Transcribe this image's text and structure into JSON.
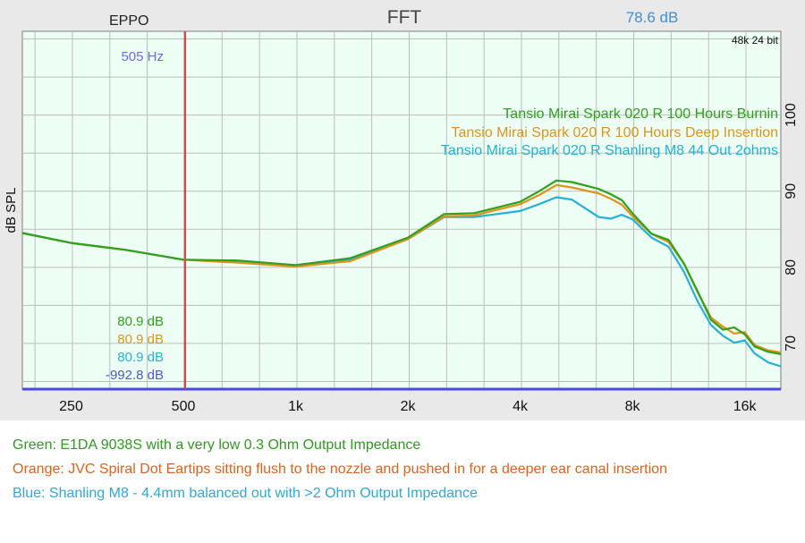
{
  "header": {
    "left": "EPPO",
    "title": "FFT",
    "right": "78.6 dB",
    "sample_info": "48k 24 bit"
  },
  "cursor": {
    "freq_label": "505 Hz",
    "freq": 505
  },
  "readouts": [
    {
      "text": "80.9 dB",
      "color": "#2ea21c"
    },
    {
      "text": "80.9 dB",
      "color": "#e0921c"
    },
    {
      "text": "80.9 dB",
      "color": "#27b0d6"
    },
    {
      "text": "-992.8 dB",
      "color": "#5555cc"
    }
  ],
  "chart_data": {
    "type": "line",
    "title": "FFT",
    "ylabel": "dB SPL",
    "xlabel": "",
    "x_scale": "log",
    "xlim": [
      185,
      20000
    ],
    "ylim": [
      64,
      111
    ],
    "x_ticks": [
      {
        "label": "250",
        "value": 250
      },
      {
        "label": "500",
        "value": 500
      },
      {
        "label": "1k",
        "value": 1000
      },
      {
        "label": "2k",
        "value": 2000
      },
      {
        "label": "4k",
        "value": 4000
      },
      {
        "label": "8k",
        "value": 8000
      },
      {
        "label": "16k",
        "value": 16000
      }
    ],
    "y_ticks": [
      {
        "label": "70",
        "value": 70
      },
      {
        "label": "80",
        "value": 80
      },
      {
        "label": "90",
        "value": 90
      },
      {
        "label": "100",
        "value": 100
      }
    ],
    "grid": true,
    "series": [
      {
        "name": "Tansio Mirai Spark 020 R 100 Hours Burnin",
        "color": "#2ea21c",
        "points": [
          [
            185,
            84.5
          ],
          [
            250,
            83.2
          ],
          [
            350,
            82.3
          ],
          [
            500,
            81
          ],
          [
            700,
            80.9
          ],
          [
            1000,
            80.3
          ],
          [
            1400,
            81.2
          ],
          [
            2000,
            83.9
          ],
          [
            2500,
            87
          ],
          [
            3000,
            87.1
          ],
          [
            4000,
            88.6
          ],
          [
            4500,
            90
          ],
          [
            5000,
            91.4
          ],
          [
            5500,
            91.2
          ],
          [
            6500,
            90.3
          ],
          [
            7000,
            89.6
          ],
          [
            7500,
            88.8
          ],
          [
            8000,
            87.1
          ],
          [
            9000,
            84.4
          ],
          [
            10000,
            83.6
          ],
          [
            11000,
            80.5
          ],
          [
            12000,
            76.7
          ],
          [
            13000,
            73.1
          ],
          [
            14000,
            71.8
          ],
          [
            15000,
            72.1
          ],
          [
            16000,
            71.2
          ],
          [
            17000,
            69.6
          ],
          [
            18500,
            68.9
          ],
          [
            20000,
            68.6
          ]
        ]
      },
      {
        "name": "Tansio Mirai Spark 020 R 100 Hours Deep Insertion",
        "color": "#e0921c",
        "points": [
          [
            185,
            84.5
          ],
          [
            250,
            83.2
          ],
          [
            350,
            82.3
          ],
          [
            500,
            81
          ],
          [
            700,
            80.6
          ],
          [
            1000,
            80.1
          ],
          [
            1400,
            80.8
          ],
          [
            2000,
            83.7
          ],
          [
            2500,
            86.7
          ],
          [
            3000,
            86.8
          ],
          [
            4000,
            88.3
          ],
          [
            4500,
            89.5
          ],
          [
            5000,
            90.8
          ],
          [
            5500,
            90.5
          ],
          [
            6500,
            89.7
          ],
          [
            7000,
            89
          ],
          [
            7500,
            88.2
          ],
          [
            8000,
            86.7
          ],
          [
            9000,
            84.4
          ],
          [
            10000,
            83.3
          ],
          [
            11000,
            80.5
          ],
          [
            12000,
            76.6
          ],
          [
            13000,
            73.4
          ],
          [
            14000,
            72.2
          ],
          [
            15000,
            71.3
          ],
          [
            16000,
            71.5
          ],
          [
            17000,
            69.8
          ],
          [
            18500,
            69.1
          ],
          [
            20000,
            68.8
          ]
        ]
      },
      {
        "name": "Tansio Mirai Spark 020 R Shanling M8 44 Out 2ohms",
        "color": "#27b0d6",
        "points": [
          [
            185,
            84.5
          ],
          [
            250,
            83.2
          ],
          [
            350,
            82.3
          ],
          [
            500,
            81
          ],
          [
            700,
            80.8
          ],
          [
            1000,
            80.2
          ],
          [
            1400,
            81
          ],
          [
            2000,
            83.7
          ],
          [
            2500,
            86.6
          ],
          [
            3000,
            86.6
          ],
          [
            4000,
            87.4
          ],
          [
            4500,
            88.3
          ],
          [
            5000,
            89.2
          ],
          [
            5500,
            88.9
          ],
          [
            6500,
            86.6
          ],
          [
            7000,
            86.4
          ],
          [
            7500,
            86.9
          ],
          [
            8000,
            86.3
          ],
          [
            9000,
            83.9
          ],
          [
            10000,
            82.7
          ],
          [
            11000,
            79.4
          ],
          [
            12000,
            75.4
          ],
          [
            13000,
            72.4
          ],
          [
            14000,
            71
          ],
          [
            15000,
            70.1
          ],
          [
            16000,
            70.4
          ],
          [
            17000,
            68.7
          ],
          [
            18500,
            67.5
          ],
          [
            20000,
            67
          ]
        ]
      }
    ]
  },
  "captions": [
    {
      "text": "Green: E1DA 9038S with a very low 0.3 Ohm Output Impedance"
    },
    {
      "text": "Orange: JVC Spiral Dot Eartips sitting flush to the nozzle and pushed in for a deeper ear canal insertion"
    },
    {
      "text": "Blue: Shanling M8 - 4.4mm balanced out with >2 Ohm Output Impedance"
    }
  ]
}
